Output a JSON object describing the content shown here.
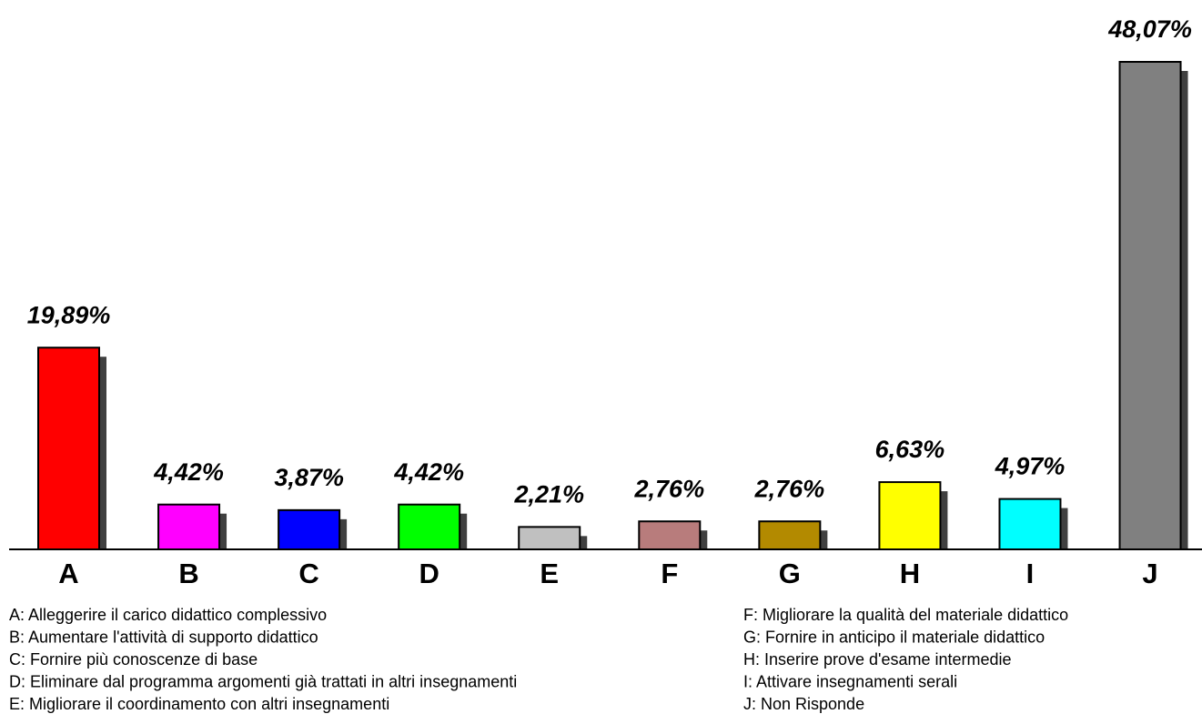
{
  "chart_data": {
    "type": "bar",
    "categories": [
      "A",
      "B",
      "C",
      "D",
      "E",
      "F",
      "G",
      "H",
      "I",
      "J"
    ],
    "values": [
      19.89,
      4.42,
      3.87,
      4.42,
      2.21,
      2.76,
      2.76,
      6.63,
      4.97,
      48.07
    ],
    "value_labels": [
      "19,89%",
      "4,42%",
      "3,87%",
      "4,42%",
      "2,21%",
      "2,76%",
      "2,76%",
      "6,63%",
      "4,97%",
      "48,07%"
    ],
    "colors": [
      "#ff0000",
      "#ff00ff",
      "#0000ff",
      "#00ff00",
      "#c0c0c0",
      "#b87c7c",
      "#b38a00",
      "#ffff00",
      "#00ffff",
      "#808080"
    ],
    "legend": [
      "A: Alleggerire il carico didattico complessivo",
      "B: Aumentare l'attività di supporto didattico",
      "C: Fornire più conoscenze di base",
      "D: Eliminare dal programma argomenti già trattati in altri insegnamenti",
      "E: Migliorare il coordinamento con altri insegnamenti",
      "F: Migliorare la qualità del materiale didattico",
      "G: Fornire in anticipo il materiale didattico",
      "H: Inserire prove d'esame intermedie",
      "I: Attivare insegnamenti serali",
      "J: Non Risponde"
    ]
  }
}
